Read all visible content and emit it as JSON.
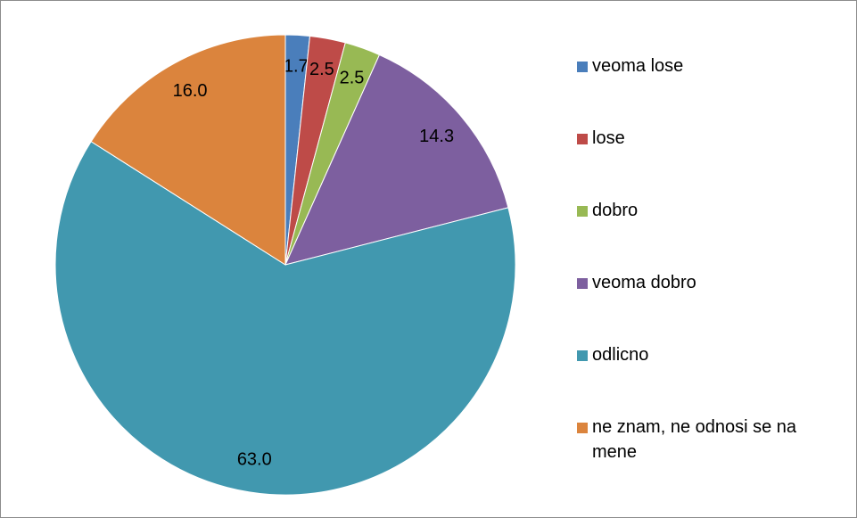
{
  "chart_data": {
    "type": "pie",
    "categories": [
      "veoma lose",
      "lose",
      "dobro",
      "veoma dobro",
      "odlicno",
      "ne znam, ne odnosi se na mene"
    ],
    "values": [
      1.7,
      2.5,
      2.5,
      14.3,
      63.0,
      16.0
    ],
    "value_labels": [
      "1.7",
      "2.5",
      "2.5",
      "14.3",
      "63.0",
      "16.0"
    ],
    "colors": [
      "#4a7ebb",
      "#be4b48",
      "#98b954",
      "#7d5f9f",
      "#4198af",
      "#db843d"
    ],
    "legend": "right"
  }
}
